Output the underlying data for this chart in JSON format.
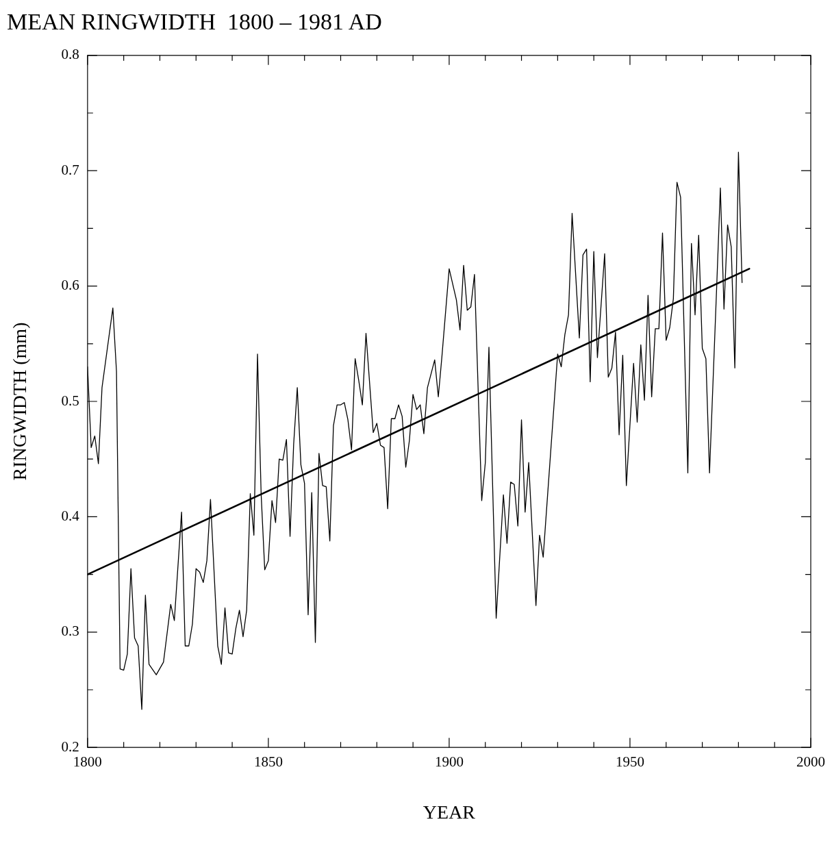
{
  "chart_data": {
    "type": "line",
    "title": "MEAN RINGWIDTH  1800 – 1981 AD",
    "xlabel": "YEAR",
    "ylabel": "RINGWIDTH (mm)",
    "xlim": [
      1800,
      2000
    ],
    "ylim": [
      0.2,
      0.8
    ],
    "xticks": [
      1800,
      {
        "value": 1810,
        "label": null
      },
      {
        "value": 1820,
        "label": null
      },
      {
        "value": 1830,
        "label": null
      },
      {
        "value": 1840,
        "label": null
      },
      1850,
      {
        "value": 1860,
        "label": null
      },
      {
        "value": 1870,
        "label": null
      },
      {
        "value": 1880,
        "label": null
      },
      {
        "value": 1890,
        "label": null
      },
      1900,
      {
        "value": 1910,
        "label": null
      },
      {
        "value": 1920,
        "label": null
      },
      {
        "value": 1930,
        "label": null
      },
      {
        "value": 1940,
        "label": null
      },
      1950,
      {
        "value": 1960,
        "label": null
      },
      {
        "value": 1970,
        "label": null
      },
      {
        "value": 1980,
        "label": null
      },
      {
        "value": 1990,
        "label": null
      },
      2000
    ],
    "yticks": [
      0.2,
      {
        "value": 0.25,
        "label": null
      },
      0.3,
      {
        "value": 0.35,
        "label": null
      },
      0.4,
      {
        "value": 0.45,
        "label": null
      },
      0.5,
      {
        "value": 0.55,
        "label": null
      },
      0.6,
      {
        "value": 0.65,
        "label": null
      },
      0.7,
      {
        "value": 0.75,
        "label": null
      },
      0.8
    ],
    "grid": false,
    "legend": false,
    "marker": "none",
    "line_style": "solid",
    "series": [
      {
        "color": "#000000",
        "x": [
          1800,
          1801,
          1802,
          1803,
          1804,
          1807,
          1808,
          1809,
          1810,
          1811,
          1812,
          1813,
          1814,
          1815,
          1816,
          1817,
          1819,
          1821,
          1823,
          1824,
          1826,
          1827,
          1828,
          1829,
          1830,
          1831,
          1832,
          1833,
          1834,
          1836,
          1837,
          1838,
          1839,
          1840,
          1841,
          1842,
          1843,
          1844,
          1845,
          1846,
          1847,
          1848,
          1849,
          1850,
          1851,
          1852,
          1853,
          1854,
          1855,
          1856,
          1857,
          1858,
          1859,
          1860,
          1861,
          1862,
          1863,
          1864,
          1865,
          1866,
          1867,
          1868,
          1869,
          1870,
          1871,
          1872,
          1873,
          1874,
          1875,
          1876,
          1877,
          1879,
          1880,
          1881,
          1882,
          1883,
          1884,
          1885,
          1886,
          1887,
          1888,
          1889,
          1890,
          1891,
          1892,
          1893,
          1894,
          1896,
          1897,
          1898,
          1900,
          1902,
          1903,
          1904,
          1905,
          1906,
          1907,
          1909,
          1910,
          1911,
          1913,
          1915,
          1916,
          1917,
          1918,
          1919,
          1920,
          1921,
          1922,
          1924,
          1925,
          1926,
          1930,
          1931,
          1932,
          1933,
          1934,
          1936,
          1937,
          1938,
          1939,
          1940,
          1941,
          1943,
          1944,
          1945,
          1946,
          1947,
          1948,
          1949,
          1951,
          1952,
          1953,
          1954,
          1955,
          1956,
          1957,
          1958,
          1959,
          1960,
          1961,
          1962,
          1963,
          1964,
          1966,
          1967,
          1968,
          1969,
          1970,
          1971,
          1972,
          1974,
          1975,
          1976,
          1977,
          1978,
          1979,
          1980,
          1981
        ],
        "values": [
          0.53,
          0.46,
          0.47,
          0.446,
          0.512,
          0.581,
          0.526,
          0.268,
          0.267,
          0.281,
          0.355,
          0.295,
          0.288,
          0.233,
          0.332,
          0.272,
          0.263,
          0.274,
          0.324,
          0.31,
          0.404,
          0.288,
          0.288,
          0.307,
          0.355,
          0.352,
          0.343,
          0.362,
          0.415,
          0.288,
          0.272,
          0.321,
          0.282,
          0.281,
          0.303,
          0.319,
          0.296,
          0.319,
          0.42,
          0.384,
          0.541,
          0.42,
          0.354,
          0.362,
          0.414,
          0.395,
          0.45,
          0.449,
          0.467,
          0.383,
          0.463,
          0.512,
          0.445,
          0.429,
          0.315,
          0.421,
          0.291,
          0.455,
          0.427,
          0.426,
          0.379,
          0.479,
          0.497,
          0.497,
          0.499,
          0.484,
          0.458,
          0.537,
          0.518,
          0.497,
          0.559,
          0.473,
          0.481,
          0.462,
          0.46,
          0.407,
          0.485,
          0.485,
          0.497,
          0.487,
          0.443,
          0.466,
          0.506,
          0.493,
          0.497,
          0.472,
          0.512,
          0.536,
          0.504,
          0.539,
          0.615,
          0.588,
          0.562,
          0.618,
          0.579,
          0.582,
          0.61,
          0.414,
          0.447,
          0.547,
          0.312,
          0.419,
          0.377,
          0.43,
          0.428,
          0.392,
          0.484,
          0.404,
          0.447,
          0.323,
          0.384,
          0.365,
          0.541,
          0.53,
          0.558,
          0.575,
          0.663,
          0.555,
          0.627,
          0.632,
          0.517,
          0.63,
          0.538,
          0.628,
          0.521,
          0.529,
          0.56,
          0.471,
          0.54,
          0.427,
          0.533,
          0.482,
          0.549,
          0.501,
          0.592,
          0.504,
          0.563,
          0.563,
          0.646,
          0.553,
          0.564,
          0.589,
          0.69,
          0.677,
          0.438,
          0.637,
          0.575,
          0.644,
          0.546,
          0.537,
          0.438,
          0.601,
          0.685,
          0.58,
          0.653,
          0.634,
          0.529,
          0.716,
          0.603
        ]
      },
      {
        "color": "#000000",
        "x": [
          1800,
          1983
        ],
        "values": [
          0.35,
          0.615
        ]
      }
    ]
  }
}
